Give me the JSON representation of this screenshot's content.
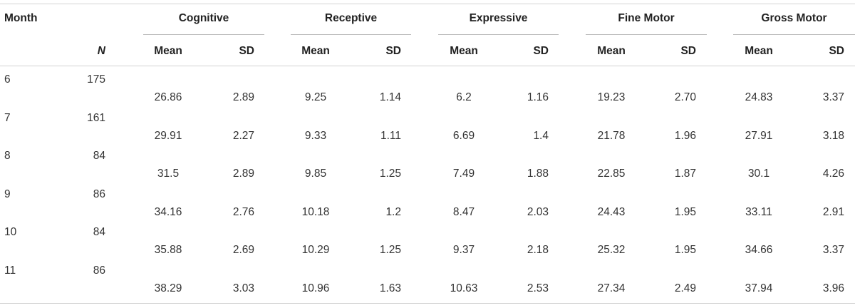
{
  "table": {
    "month_header": "Month",
    "n_header": "N",
    "groups": [
      "Cognitive",
      "Receptive",
      "Expressive",
      "Fine Motor",
      "Gross Motor"
    ],
    "sub_headers": [
      "Mean",
      "SD"
    ],
    "rows": [
      {
        "month": "6",
        "n": "175",
        "values": [
          [
            "26.86",
            "2.89"
          ],
          [
            "9.25",
            "1.14"
          ],
          [
            "6.2",
            "1.16"
          ],
          [
            "19.23",
            "2.70"
          ],
          [
            "24.83",
            "3.37"
          ]
        ]
      },
      {
        "month": "7",
        "n": "161",
        "values": [
          [
            "29.91",
            "2.27"
          ],
          [
            "9.33",
            "1.11"
          ],
          [
            "6.69",
            "1.4"
          ],
          [
            "21.78",
            "1.96"
          ],
          [
            "27.91",
            "3.18"
          ]
        ]
      },
      {
        "month": "8",
        "n": "84",
        "values": [
          [
            "31.5",
            "2.89"
          ],
          [
            "9.85",
            "1.25"
          ],
          [
            "7.49",
            "1.88"
          ],
          [
            "22.85",
            "1.87"
          ],
          [
            "30.1",
            "4.26"
          ]
        ]
      },
      {
        "month": "9",
        "n": "86",
        "values": [
          [
            "34.16",
            "2.76"
          ],
          [
            "10.18",
            "1.2"
          ],
          [
            "8.47",
            "2.03"
          ],
          [
            "24.43",
            "1.95"
          ],
          [
            "33.11",
            "2.91"
          ]
        ]
      },
      {
        "month": "10",
        "n": "84",
        "values": [
          [
            "35.88",
            "2.69"
          ],
          [
            "10.29",
            "1.25"
          ],
          [
            "9.37",
            "2.18"
          ],
          [
            "25.32",
            "1.95"
          ],
          [
            "34.66",
            "3.37"
          ]
        ]
      },
      {
        "month": "11",
        "n": "86",
        "values": [
          [
            "38.29",
            "3.03"
          ],
          [
            "10.96",
            "1.63"
          ],
          [
            "10.63",
            "2.53"
          ],
          [
            "27.34",
            "2.49"
          ],
          [
            "37.94",
            "3.96"
          ]
        ]
      }
    ]
  }
}
